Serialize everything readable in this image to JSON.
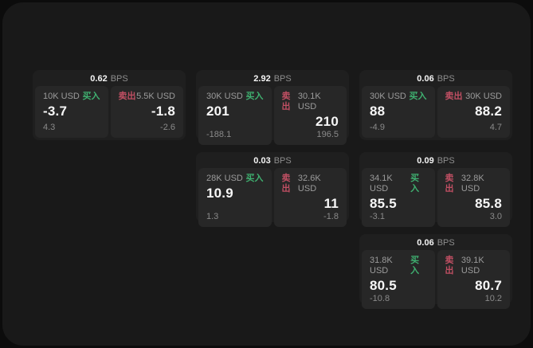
{
  "labels": {
    "unit": "BPS",
    "buy": "买入",
    "sell": "卖出"
  },
  "colors": {
    "background": "#0c0c0c",
    "window": "#191919",
    "card": "#1f1f1f",
    "panel": "#272727",
    "buy_green": "#3fb070",
    "sell_red": "#c04f63",
    "value_white": "#f7f7f7",
    "muted_gray": "#8d8d8d"
  },
  "cards": [
    {
      "bps": "0.62",
      "buy": {
        "amount": "10K USD",
        "value": "-3.7",
        "delta": "4.3"
      },
      "sell": {
        "amount": "5.5K USD",
        "value": "-1.8",
        "delta": "-2.6"
      }
    },
    {
      "bps": "2.92",
      "buy": {
        "amount": "30K USD",
        "value": "201",
        "delta": "-188.1"
      },
      "sell": {
        "amount": "30.1K USD",
        "value": "210",
        "delta": "196.5"
      }
    },
    {
      "bps": "0.06",
      "buy": {
        "amount": "30K USD",
        "value": "88",
        "delta": "-4.9"
      },
      "sell": {
        "amount": "30K USD",
        "value": "88.2",
        "delta": "4.7"
      }
    },
    {
      "bps": "0.03",
      "buy": {
        "amount": "28K USD",
        "value": "10.9",
        "delta": "1.3"
      },
      "sell": {
        "amount": "32.6K USD",
        "value": "11",
        "delta": "-1.8"
      }
    },
    {
      "bps": "0.09",
      "buy": {
        "amount": "34.1K USD",
        "value": "85.5",
        "delta": "-3.1"
      },
      "sell": {
        "amount": "32.8K USD",
        "value": "85.8",
        "delta": "3.0"
      }
    },
    {
      "bps": "0.06",
      "buy": {
        "amount": "31.8K USD",
        "value": "80.5",
        "delta": "-10.8"
      },
      "sell": {
        "amount": "39.1K USD",
        "value": "80.7",
        "delta": "10.2"
      }
    }
  ]
}
